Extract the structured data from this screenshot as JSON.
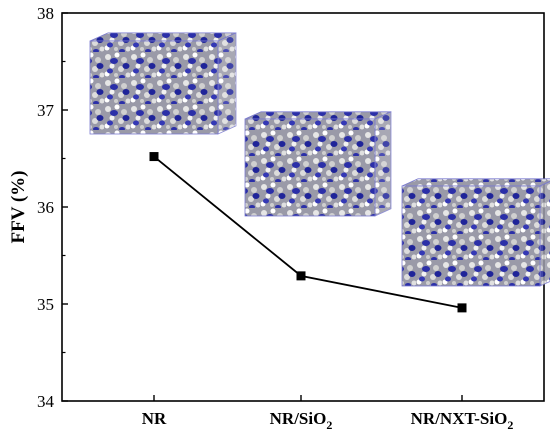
{
  "chart_data": {
    "type": "line",
    "title": "",
    "xlabel": "",
    "ylabel": "FFV (%)",
    "categories": [
      "NR",
      "NR/SiO2",
      "NR/NXT-SiO2"
    ],
    "category_labels": [
      {
        "base": "NR",
        "sub": ""
      },
      {
        "base": "NR/SiO",
        "sub": "2"
      },
      {
        "base": "NR/NXT-SiO",
        "sub": "2"
      }
    ],
    "series": [
      {
        "values": [
          36.52,
          35.29,
          34.96
        ]
      }
    ],
    "ylim": [
      34,
      38
    ],
    "yticks": [
      34,
      35,
      36,
      37,
      38
    ],
    "grid": false,
    "legend": "none",
    "marker": "square",
    "colors": {
      "line": "#000000",
      "marker": "#000000",
      "filler_particles": "#2b2fa8",
      "rubber_chains": "#c8c8c8"
    },
    "insets": [
      {
        "category": "NR",
        "description_icon": "molecular-cell-cube"
      },
      {
        "category": "NR/SiO2",
        "description_icon": "molecular-cell-cube"
      },
      {
        "category": "NR/NXT-SiO2",
        "description_icon": "molecular-cell-cube"
      }
    ]
  }
}
